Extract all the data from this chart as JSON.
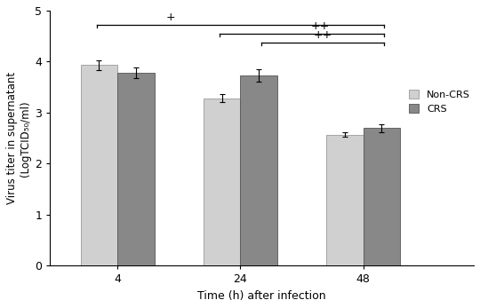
{
  "time_points": [
    4,
    24,
    48
  ],
  "x_positions": [
    1,
    2,
    3
  ],
  "non_crs_values": [
    3.93,
    3.28,
    2.57
  ],
  "crs_values": [
    3.78,
    3.73,
    2.7
  ],
  "non_crs_errors": [
    0.1,
    0.08,
    0.04
  ],
  "crs_errors": [
    0.1,
    0.13,
    0.08
  ],
  "non_crs_color": "#d0d0d0",
  "crs_color": "#888888",
  "bar_width": 0.3,
  "ylim": [
    0,
    5
  ],
  "yticks": [
    0,
    1,
    2,
    3,
    4,
    5
  ],
  "xlabel": "Time (h) after infection",
  "ylabel_line1": "Virus titer in supernatant",
  "ylabel_line2": "(LogTCID₅₀/ml)",
  "legend_labels": [
    "Non-CRS",
    "CRS"
  ],
  "background_color": "#ffffff",
  "figsize": [
    5.4,
    3.47
  ],
  "dpi": 100
}
